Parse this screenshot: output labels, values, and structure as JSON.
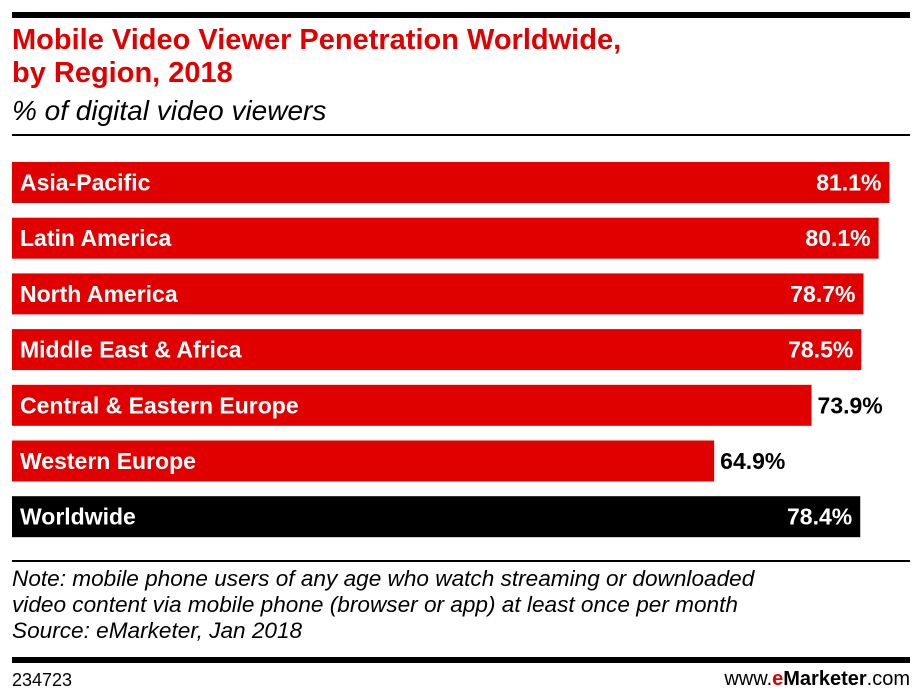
{
  "header": {
    "title": "Mobile Video Viewer Penetration Worldwide,\nby Region, 2018",
    "subtitle": "% of digital video viewers"
  },
  "colors": {
    "accent": "#e10000",
    "total": "#000000",
    "text_on_bar": "#ffffff",
    "text_off_bar": "#000000"
  },
  "chart_data": {
    "type": "bar",
    "orientation": "horizontal",
    "categories": [
      "Asia-Pacific",
      "Latin America",
      "North America",
      "Middle East & Africa",
      "Central & Eastern Europe",
      "Western Europe",
      "Worldwide"
    ],
    "values": [
      81.1,
      80.1,
      78.7,
      78.5,
      73.9,
      64.9,
      78.4
    ],
    "value_labels": [
      "81.1%",
      "80.1%",
      "78.7%",
      "78.5%",
      "73.9%",
      "64.9%",
      "78.4%"
    ],
    "highlight": "Worldwide",
    "xlim": [
      0,
      83
    ],
    "grid": false,
    "legend": "none"
  },
  "footer": {
    "note_lines": [
      "Note: mobile phone users of any age who watch streaming or downloaded",
      "video content via mobile phone (browser or app) at least once per month",
      "Source: eMarketer, Jan 2018"
    ],
    "chart_id": "234723",
    "brand_prefix": "www.",
    "brand_e": "e",
    "brand_name": "Marketer",
    "brand_suffix": ".com"
  }
}
